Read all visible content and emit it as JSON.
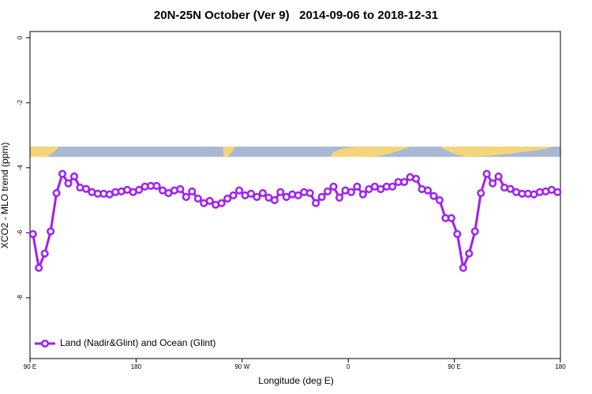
{
  "chart_data": {
    "type": "line",
    "title": "20N-25N October (Ver 9)   2014-09-06 to 2018-12-31",
    "x_label": "Longitude (deg E)",
    "y_label": "XCO2 - MLO trend (ppm)",
    "x": [
      92.5,
      97.5,
      102.5,
      107.5,
      112.5,
      117.5,
      122.5,
      127.5,
      132.5,
      137.5,
      142.5,
      147.5,
      152.5,
      157.5,
      162.5,
      167.5,
      172.5,
      177.5,
      182.5,
      187.5,
      192.5,
      197.5,
      202.5,
      207.5,
      212.5,
      217.5,
      222.5,
      227.5,
      232.5,
      237.5,
      242.5,
      247.5,
      252.5,
      257.5,
      262.5,
      267.5,
      272.5,
      277.5,
      282.5,
      287.5,
      292.5,
      297.5,
      302.5,
      307.5,
      312.5,
      317.5,
      322.5,
      327.5,
      332.5,
      337.5,
      342.5,
      347.5,
      352.5,
      357.5,
      362.5,
      367.5,
      372.5,
      377.5,
      382.5,
      387.5,
      392.5,
      397.5,
      402.5,
      407.5,
      412.5,
      417.5,
      422.5,
      427.5,
      432.5,
      437.5,
      442.5,
      447.5,
      452.5,
      457.5,
      462.5,
      467.5,
      472.5,
      477.5,
      482.5,
      487.5,
      492.5,
      497.5,
      502.5,
      507.5,
      512.5,
      517.5,
      522.5,
      527.5,
      532.5,
      537.5
    ],
    "series": [
      {
        "name": "Land (Nadir&Glint) and Ocean (Glint)",
        "color": "#a020f0",
        "values": [
          -6.04,
          -7.08,
          -6.64,
          -5.96,
          -4.78,
          -4.19,
          -4.48,
          -4.27,
          -4.61,
          -4.65,
          -4.75,
          -4.8,
          -4.8,
          -4.82,
          -4.75,
          -4.73,
          -4.68,
          -4.75,
          -4.68,
          -4.58,
          -4.56,
          -4.56,
          -4.7,
          -4.78,
          -4.7,
          -4.66,
          -4.9,
          -4.73,
          -4.95,
          -5.09,
          -5.02,
          -5.14,
          -5.09,
          -4.95,
          -4.85,
          -4.7,
          -4.85,
          -4.8,
          -4.9,
          -4.78,
          -4.92,
          -5.0,
          -4.75,
          -4.9,
          -4.82,
          -4.85,
          -4.75,
          -4.78,
          -5.09,
          -4.9,
          -4.73,
          -4.58,
          -4.92,
          -4.7,
          -4.75,
          -4.58,
          -4.82,
          -4.66,
          -4.58,
          -4.66,
          -4.58,
          -4.58,
          -4.44,
          -4.44,
          -4.29,
          -4.34,
          -4.66,
          -4.7,
          -4.87,
          -5.0,
          -5.55,
          -5.55,
          -6.04,
          -7.08,
          -6.64,
          -5.96,
          -4.78,
          -4.19,
          -4.48,
          -4.27,
          -4.61,
          -4.65,
          -4.75,
          -4.8,
          -4.8,
          -4.82,
          -4.75,
          -4.73,
          -4.68,
          -4.75
        ]
      }
    ],
    "xlim": [
      90,
      540
    ],
    "xticks": [
      {
        "value": 90,
        "label": "90 E"
      },
      180,
      {
        "value": 270,
        "label": "90 W"
      },
      {
        "value": 360,
        "label": "0"
      },
      {
        "value": 450,
        "label": "90 E"
      },
      {
        "value": 540,
        "label": "180"
      }
    ],
    "ylim": [
      -9.87,
      0.19
    ],
    "yticks": [
      -8,
      -6,
      -4,
      -2,
      0
    ],
    "legend": "bottom-left"
  }
}
